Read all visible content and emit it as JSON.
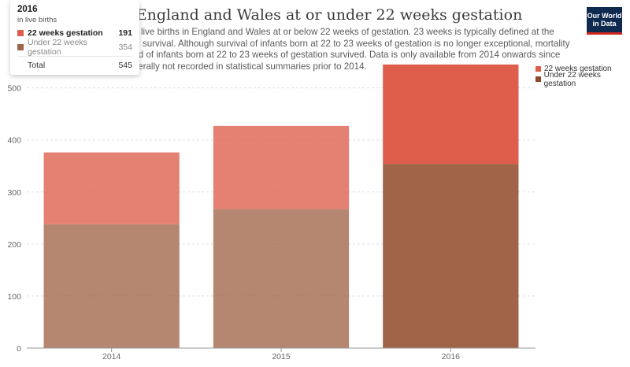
{
  "header": {
    "title": "Infant deaths in England and Wales at or under 22 weeks gestation",
    "subtitle": "This chart shows the number of live births in England and Wales at or below 22 weeks of gestation. 23 weeks is typically defined at the threshold of extreme viability for survival. Although survival of infants born at 22 to 23 weeks of gestation is no longer exceptional, mortality rates are high. In 2015, one-third of infants born at 22 to 23 weeks of gestation survived. Data is only available from 2014 onwards since the period of gestation was generally not recorded in statistical summaries prior to 2014.",
    "logo_line1": "Our World",
    "logo_line2": "in Data"
  },
  "tooltip": {
    "year": "2016",
    "unit": "in live births",
    "rows": [
      {
        "label": "22 weeks gestation",
        "value": "191",
        "color": "#de5d4b"
      },
      {
        "label": "Under 22 weeks gestation",
        "value": "354",
        "color": "#a06448"
      }
    ],
    "total_label": "Total",
    "total_value": "545"
  },
  "legend": [
    {
      "label": "22 weeks gestation",
      "color": "#de5d4b"
    },
    {
      "label": "Under 22 weeks gestation",
      "color": "#8c4a2f"
    }
  ],
  "chart_data": {
    "type": "bar",
    "stacked": true,
    "categories": [
      "2014",
      "2015",
      "2016"
    ],
    "series": [
      {
        "name": "Under 22 weeks gestation",
        "values": [
          238,
          267,
          354
        ],
        "color": "#a06448"
      },
      {
        "name": "22 weeks gestation",
        "values": [
          138,
          160,
          191
        ],
        "color": "#de5d4b"
      }
    ],
    "highlight_category": "2016",
    "faded_opacity": 0.78,
    "yticks": [
      0,
      100,
      200,
      300,
      400,
      500
    ],
    "ylim": [
      0,
      560
    ],
    "grid": true,
    "legend_position": "right"
  }
}
